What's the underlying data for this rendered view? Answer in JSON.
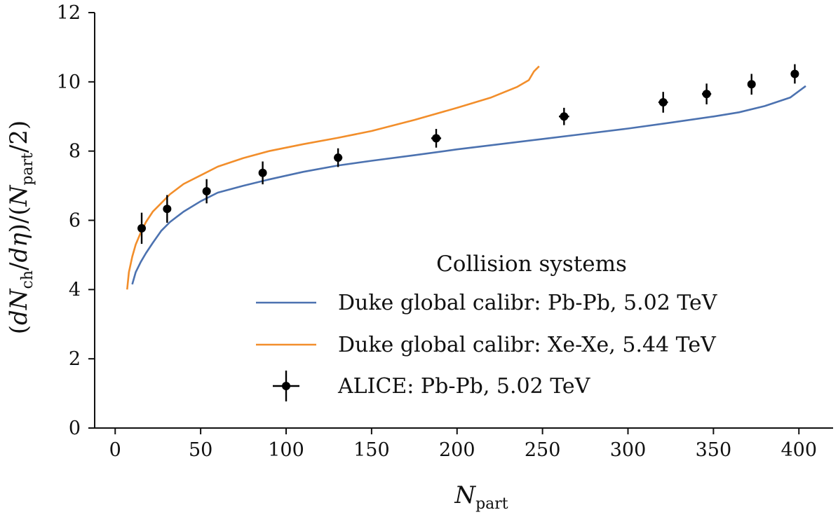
{
  "chart_data": {
    "type": "line",
    "xlabel": "N_part",
    "ylabel": "(dN_ch/dη)/(N_part/2)",
    "xlim": [
      -12,
      420
    ],
    "ylim": [
      0,
      12
    ],
    "x_ticks": [
      0,
      50,
      100,
      150,
      200,
      250,
      300,
      350,
      400
    ],
    "y_ticks": [
      0,
      2,
      4,
      6,
      8,
      10,
      12
    ],
    "grid": false,
    "legend": {
      "title": "Collision systems",
      "placement": "lower-right"
    },
    "series": [
      {
        "name": "Duke global calibr: Pb-Pb, 5.02 TeV",
        "kind": "line",
        "color": "#4c72b0",
        "x": [
          10,
          12,
          15,
          18,
          22,
          27,
          32,
          40,
          50,
          60,
          75,
          90,
          110,
          130,
          150,
          175,
          200,
          225,
          250,
          275,
          300,
          325,
          350,
          365,
          380,
          395,
          404
        ],
        "y": [
          4.15,
          4.5,
          4.8,
          5.05,
          5.35,
          5.7,
          5.95,
          6.25,
          6.55,
          6.8,
          7.0,
          7.18,
          7.4,
          7.58,
          7.72,
          7.88,
          8.05,
          8.2,
          8.35,
          8.5,
          8.65,
          8.82,
          9.0,
          9.12,
          9.3,
          9.55,
          9.88
        ]
      },
      {
        "name": "Duke global calibr: Xe-Xe, 5.44 TeV",
        "kind": "line",
        "color": "#f28e2b",
        "x": [
          7,
          8,
          10,
          12,
          15,
          18,
          22,
          27,
          32,
          40,
          50,
          60,
          75,
          90,
          110,
          130,
          150,
          175,
          200,
          220,
          235,
          242,
          245,
          248
        ],
        "y": [
          4.0,
          4.5,
          4.95,
          5.3,
          5.65,
          5.95,
          6.25,
          6.5,
          6.75,
          7.05,
          7.3,
          7.55,
          7.8,
          8.0,
          8.2,
          8.38,
          8.58,
          8.9,
          9.25,
          9.55,
          9.85,
          10.05,
          10.3,
          10.45
        ]
      },
      {
        "name": "ALICE: Pb-Pb, 5.02 TeV",
        "kind": "errorbar",
        "color": "#000000",
        "x": [
          15.5,
          30.4,
          53.5,
          86.3,
          130.4,
          187.8,
          262.6,
          320.6,
          346.0,
          372.3,
          397.6
        ],
        "y": [
          5.77,
          6.33,
          6.84,
          7.37,
          7.81,
          8.37,
          9.0,
          9.41,
          9.65,
          9.93,
          10.23
        ],
        "xerr": [
          1.0,
          1.2,
          1.6,
          2.0,
          2.5,
          2.9,
          3.0,
          2.8,
          2.7,
          2.0,
          1.7
        ],
        "yerr": [
          0.45,
          0.4,
          0.35,
          0.33,
          0.27,
          0.27,
          0.25,
          0.3,
          0.3,
          0.3,
          0.28
        ]
      }
    ]
  }
}
